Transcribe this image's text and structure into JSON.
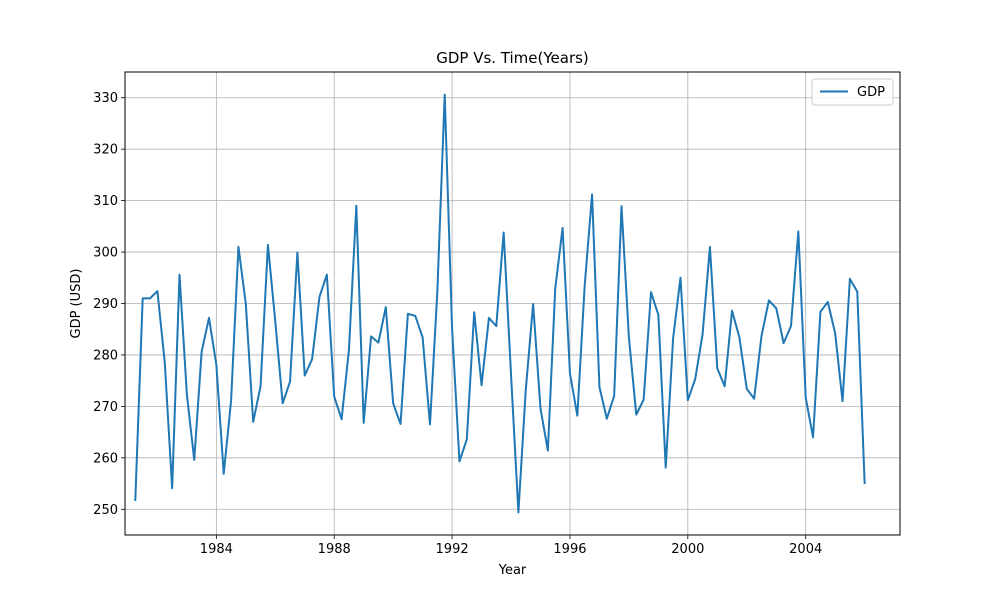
{
  "chart_data": {
    "type": "line",
    "title": "GDP Vs. Time(Years)",
    "xlabel": "Year",
    "ylabel": "GDP (USD)",
    "xlim": [
      1980.9,
      2007.2
    ],
    "ylim": [
      245,
      335
    ],
    "x_ticks": [
      1984,
      1988,
      1992,
      1996,
      2000,
      2004
    ],
    "y_ticks": [
      250,
      260,
      270,
      280,
      290,
      300,
      310,
      320,
      330
    ],
    "grid": true,
    "legend": "upper-right",
    "series": [
      {
        "name": "GDP",
        "color": "#1f77b4",
        "x": [
          1981.25,
          1981.5,
          1981.75,
          1982.0,
          1982.25,
          1982.5,
          1982.75,
          1983.0,
          1983.25,
          1983.5,
          1983.75,
          1984.0,
          1984.25,
          1984.5,
          1984.75,
          1985.0,
          1985.25,
          1985.5,
          1985.75,
          1986.0,
          1986.25,
          1986.5,
          1986.75,
          1987.0,
          1987.25,
          1987.5,
          1987.75,
          1988.0,
          1988.25,
          1988.5,
          1988.75,
          1989.0,
          1989.25,
          1989.5,
          1989.75,
          1990.0,
          1990.25,
          1990.5,
          1990.75,
          1991.0,
          1991.25,
          1991.5,
          1991.75,
          1992.0,
          1992.25,
          1992.5,
          1992.75,
          1993.0,
          1993.25,
          1993.5,
          1993.75,
          1994.0,
          1994.25,
          1994.5,
          1994.75,
          1995.0,
          1995.25,
          1995.5,
          1995.75,
          1996.0,
          1996.25,
          1996.5,
          1996.75,
          1997.0,
          1997.25,
          1997.5,
          1997.75,
          1998.0,
          1998.25,
          1998.5,
          1998.75,
          1999.0,
          1999.25,
          1999.5,
          1999.75,
          2000.0,
          2000.25,
          2000.5,
          2000.75,
          2001.0,
          2001.25,
          2001.5,
          2001.75,
          2002.0,
          2002.25,
          2002.5,
          2002.75,
          2003.0,
          2003.25,
          2003.5,
          2003.75,
          2004.0,
          2004.25,
          2004.5,
          2004.75,
          2005.0,
          2005.25,
          2005.5,
          2005.75,
          2006.0
        ],
        "y": [
          251.8,
          291.0,
          291.0,
          292.4,
          278.5,
          254.1,
          295.6,
          272.3,
          259.6,
          280.6,
          287.2,
          278.1,
          256.9,
          271.1,
          301.0,
          289.9,
          267.0,
          273.9,
          301.4,
          286.5,
          270.6,
          274.8,
          299.9,
          276.0,
          279.2,
          291.3,
          295.6,
          271.9,
          267.5,
          281.0,
          309.0,
          266.8,
          283.6,
          282.4,
          289.3,
          270.6,
          266.6,
          288.0,
          287.6,
          283.4,
          266.5,
          292.4,
          330.6,
          285.1,
          259.3,
          263.6,
          288.3,
          274.1,
          287.2,
          285.6,
          303.8,
          276.2,
          249.4,
          273.2,
          289.9,
          269.6,
          261.4,
          292.9,
          304.7,
          276.4,
          268.2,
          293.5,
          311.2,
          273.8,
          267.6,
          272.0,
          308.9,
          283.4,
          268.4,
          271.3,
          292.2,
          287.8,
          258.1,
          283.2,
          295.0,
          271.2,
          275.3,
          284.0,
          301.0,
          277.4,
          273.9,
          288.6,
          283.4,
          273.4,
          271.5,
          283.7,
          290.6,
          289.1,
          282.3,
          285.6,
          304.0,
          271.7,
          264.0,
          288.4,
          290.3,
          284.2,
          271.0,
          294.8,
          292.3,
          255.1
        ]
      }
    ]
  }
}
